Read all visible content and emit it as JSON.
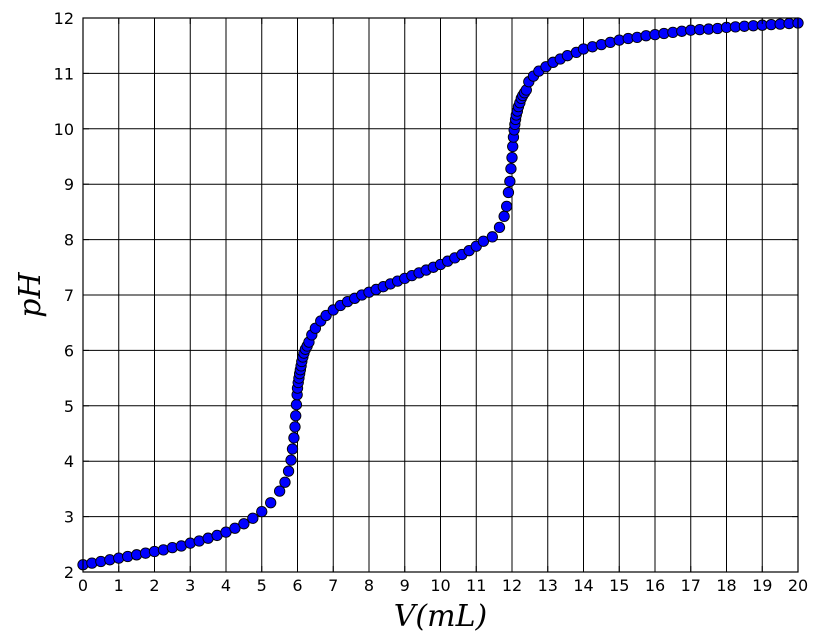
{
  "chart_data": {
    "type": "scatter",
    "title": "",
    "xlabel": "V(mL)",
    "ylabel": "pH",
    "xlim": [
      0,
      20
    ],
    "ylim": [
      2,
      12
    ],
    "xticks": [
      0,
      1,
      2,
      3,
      4,
      5,
      6,
      7,
      8,
      9,
      10,
      11,
      12,
      13,
      14,
      15,
      16,
      17,
      18,
      19,
      20
    ],
    "yticks": [
      2,
      3,
      4,
      5,
      6,
      7,
      8,
      9,
      10,
      11,
      12
    ],
    "grid": true,
    "legend": "none",
    "marker_color": "#0000ff",
    "marker_edge_color": "#000000",
    "series": [
      {
        "x": [
          0.0,
          0.25,
          0.5,
          0.75,
          1.0,
          1.25,
          1.5,
          1.75,
          2.0,
          2.25,
          2.5,
          2.75,
          3.0,
          3.25,
          3.5,
          3.75,
          4.0,
          4.25,
          4.5,
          4.75,
          5.0,
          5.25,
          5.5,
          5.65,
          5.75,
          5.82,
          5.86,
          5.9,
          5.93,
          5.95,
          5.97,
          5.99,
          6.0,
          6.02,
          6.04,
          6.06,
          6.08,
          6.1,
          6.12,
          6.15,
          6.18,
          6.22,
          6.27,
          6.32,
          6.4,
          6.5,
          6.65,
          6.8,
          7.0,
          7.2,
          7.4,
          7.6,
          7.8,
          8.0,
          8.2,
          8.4,
          8.6,
          8.8,
          9.0,
          9.2,
          9.4,
          9.6,
          9.8,
          10.0,
          10.2,
          10.4,
          10.6,
          10.8,
          11.0,
          11.2,
          11.45,
          11.65,
          11.78,
          11.85,
          11.9,
          11.94,
          11.97,
          12.0,
          12.02,
          12.04,
          12.06,
          12.08,
          12.1,
          12.12,
          12.15,
          12.18,
          12.22,
          12.26,
          12.3,
          12.35,
          12.4,
          12.47,
          12.6,
          12.75,
          12.95,
          13.15,
          13.35,
          13.55,
          13.8,
          14.0,
          14.25,
          14.5,
          14.75,
          15.0,
          15.25,
          15.5,
          15.75,
          16.0,
          16.25,
          16.5,
          16.75,
          17.0,
          17.25,
          17.5,
          17.75,
          18.0,
          18.25,
          18.5,
          18.75,
          19.0,
          19.25,
          19.5,
          19.75,
          20.0
        ],
        "y": [
          2.13,
          2.16,
          2.19,
          2.22,
          2.25,
          2.28,
          2.31,
          2.34,
          2.37,
          2.4,
          2.44,
          2.47,
          2.52,
          2.56,
          2.61,
          2.66,
          2.72,
          2.79,
          2.87,
          2.97,
          3.09,
          3.25,
          3.46,
          3.62,
          3.82,
          4.02,
          4.22,
          4.42,
          4.62,
          4.82,
          5.02,
          5.2,
          5.32,
          5.42,
          5.5,
          5.58,
          5.65,
          5.72,
          5.8,
          5.88,
          5.95,
          6.02,
          6.08,
          6.15,
          6.28,
          6.4,
          6.53,
          6.63,
          6.73,
          6.81,
          6.88,
          6.94,
          7.0,
          7.05,
          7.1,
          7.15,
          7.2,
          7.25,
          7.3,
          7.35,
          7.4,
          7.45,
          7.5,
          7.55,
          7.61,
          7.67,
          7.73,
          7.8,
          7.88,
          7.97,
          8.05,
          8.22,
          8.42,
          8.6,
          8.85,
          9.05,
          9.28,
          9.48,
          9.68,
          9.85,
          9.98,
          10.08,
          10.17,
          10.25,
          10.32,
          10.4,
          10.47,
          10.55,
          10.6,
          10.65,
          10.7,
          10.85,
          10.95,
          11.04,
          11.12,
          11.2,
          11.26,
          11.32,
          11.38,
          11.44,
          11.48,
          11.52,
          11.56,
          11.6,
          11.63,
          11.65,
          11.68,
          11.7,
          11.72,
          11.74,
          11.76,
          11.78,
          11.79,
          11.8,
          11.81,
          11.83,
          11.84,
          11.85,
          11.86,
          11.87,
          11.88,
          11.89,
          11.9,
          11.91
        ]
      }
    ]
  }
}
